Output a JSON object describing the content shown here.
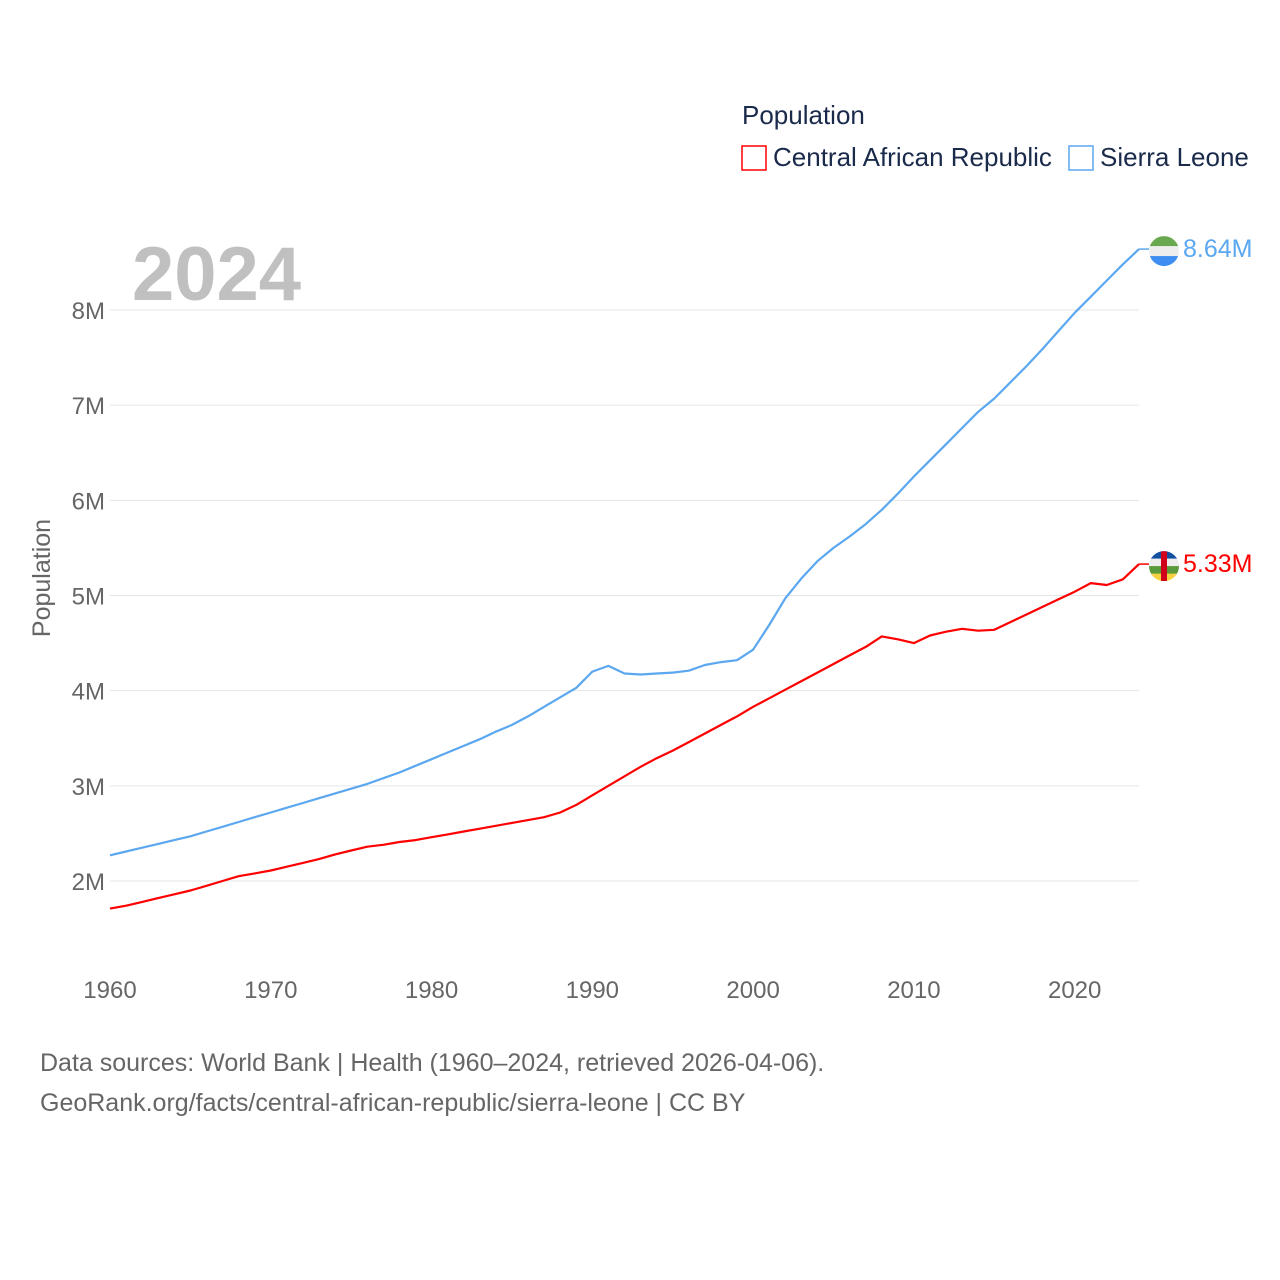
{
  "chart_data": {
    "type": "line",
    "title": "",
    "year_label": "2024",
    "xlabel": "",
    "ylabel": "Population",
    "xlim": [
      1960,
      2024
    ],
    "ylim": [
      1.4,
      8.9
    ],
    "x_ticks": [
      "1960",
      "1970",
      "1980",
      "1990",
      "2000",
      "2010",
      "2020"
    ],
    "y_ticks": [
      {
        "value": 2,
        "label": "2M"
      },
      {
        "value": 3,
        "label": "3M"
      },
      {
        "value": 4,
        "label": "4M"
      },
      {
        "value": 5,
        "label": "5M"
      },
      {
        "value": 6,
        "label": "6M"
      },
      {
        "value": 7,
        "label": "7M"
      },
      {
        "value": 8,
        "label": "8M"
      }
    ],
    "grid": true,
    "legend": {
      "title": "Population",
      "placement": "top-right"
    },
    "x_start": 1960,
    "units": "millions",
    "series": [
      {
        "name": "Central African Republic",
        "color": "#ff0000",
        "end_label": "5.33M",
        "flag": "central-african-republic-flag",
        "values": [
          1.71,
          1.74,
          1.78,
          1.82,
          1.86,
          1.9,
          1.95,
          2.0,
          2.05,
          2.08,
          2.11,
          2.15,
          2.19,
          2.23,
          2.28,
          2.32,
          2.36,
          2.38,
          2.41,
          2.43,
          2.46,
          2.49,
          2.52,
          2.55,
          2.58,
          2.61,
          2.64,
          2.67,
          2.72,
          2.8,
          2.9,
          3.0,
          3.1,
          3.2,
          3.29,
          3.37,
          3.46,
          3.55,
          3.64,
          3.73,
          3.83,
          3.92,
          4.01,
          4.1,
          4.19,
          4.28,
          4.37,
          4.46,
          4.57,
          4.54,
          4.5,
          4.58,
          4.62,
          4.65,
          4.63,
          4.64,
          4.72,
          4.8,
          4.88,
          4.96,
          5.04,
          5.13,
          5.11,
          5.17,
          5.33
        ]
      },
      {
        "name": "Sierra Leone",
        "color": "#5ba7f0",
        "end_label": "8.64M",
        "flag": "sierra-leone-flag",
        "values": [
          2.27,
          2.31,
          2.35,
          2.39,
          2.43,
          2.47,
          2.52,
          2.57,
          2.62,
          2.67,
          2.72,
          2.77,
          2.82,
          2.87,
          2.92,
          2.97,
          3.02,
          3.08,
          3.14,
          3.21,
          3.28,
          3.35,
          3.42,
          3.49,
          3.57,
          3.64,
          3.73,
          3.83,
          3.93,
          4.03,
          4.2,
          4.26,
          4.18,
          4.17,
          4.18,
          4.19,
          4.21,
          4.27,
          4.3,
          4.32,
          4.43,
          4.69,
          4.97,
          5.18,
          5.36,
          5.5,
          5.62,
          5.75,
          5.9,
          6.07,
          6.25,
          6.42,
          6.59,
          6.76,
          6.93,
          7.07,
          7.24,
          7.41,
          7.59,
          7.78,
          7.97,
          8.14,
          8.31,
          8.48,
          8.64
        ]
      }
    ]
  },
  "footer": {
    "line1": "Data sources: World Bank | Health (1960–2024, retrieved 2026-04-06).",
    "line2": "GeoRank.org/facts/central-african-republic/sierra-leone | CC BY"
  }
}
